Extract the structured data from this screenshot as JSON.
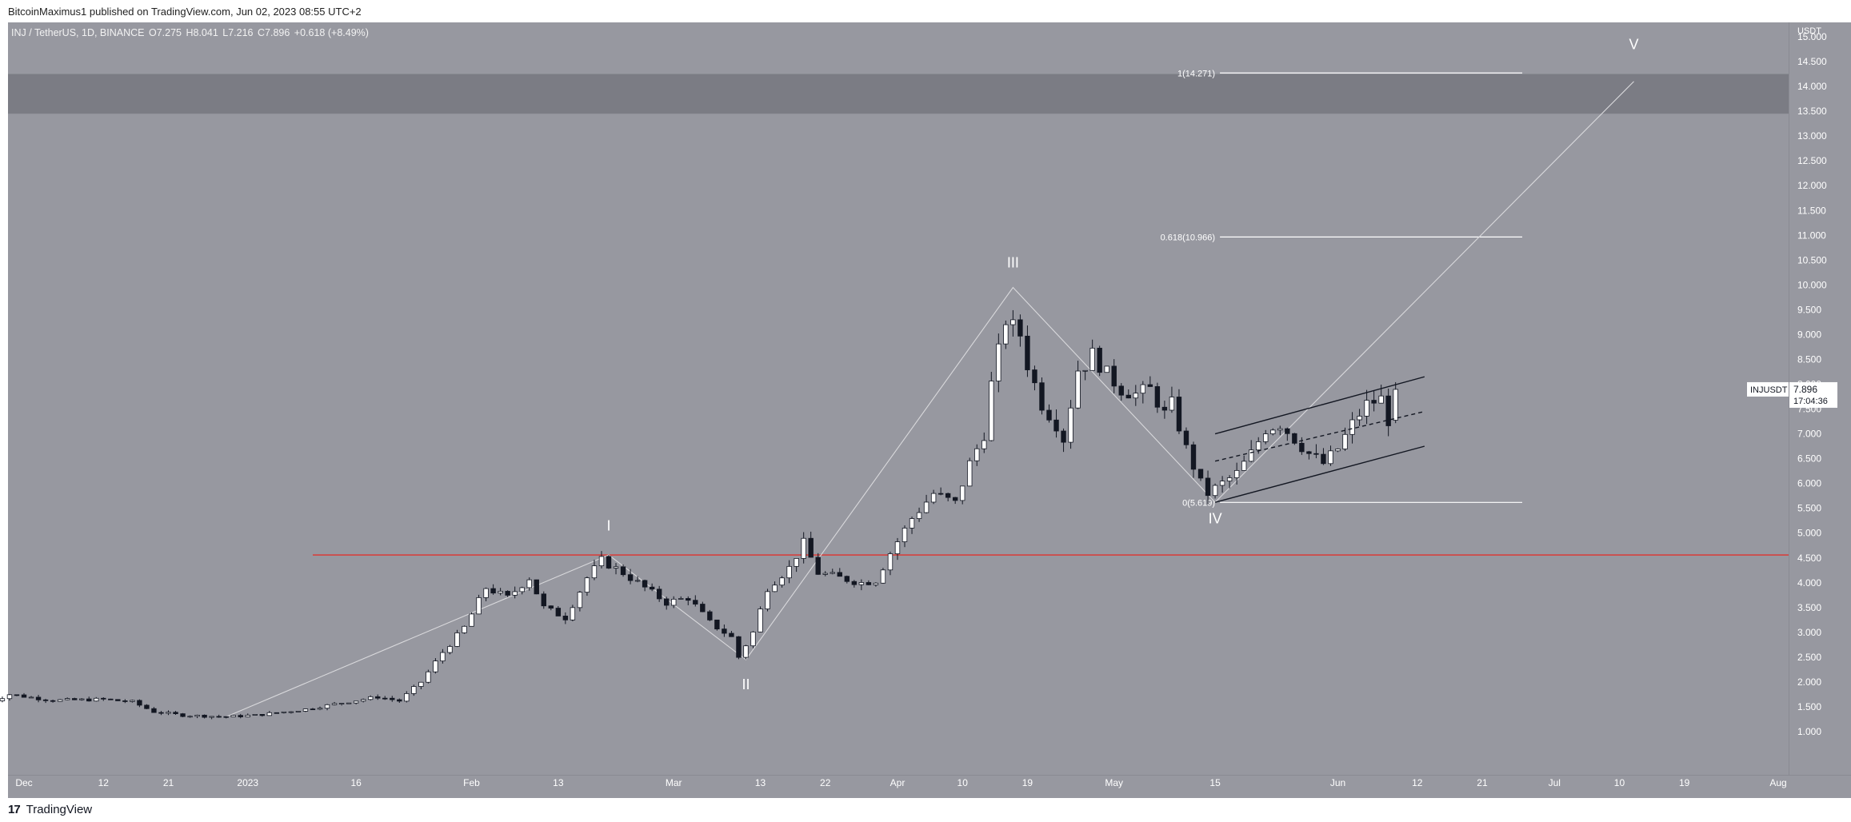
{
  "header": {
    "publisher_text": "BitcoinMaximus1 published on TradingView.com, Jun 02, 2023 08:55 UTC+2"
  },
  "symbol_info": {
    "title": "INJ / TetherUS, 1D, BINANCE",
    "open": "O7.275",
    "high": "H8.041",
    "low": "L7.216",
    "close": "C7.896",
    "change": "+0.618 (+8.49%)"
  },
  "footer": {
    "logo_mark": "17",
    "logo_text": "TradingView"
  },
  "chart_data": {
    "type": "candlestick",
    "symbol": "INJUSDT",
    "exchange": "BINANCE",
    "interval": "1D",
    "y_axis": {
      "unit": "USDT",
      "range": [
        0.7,
        15.3
      ],
      "ticks": [
        1.0,
        1.5,
        2.0,
        2.5,
        3.0,
        3.5,
        4.0,
        4.5,
        5.0,
        5.5,
        6.0,
        6.5,
        7.0,
        7.5,
        8.0,
        8.5,
        9.0,
        9.5,
        10.0,
        10.5,
        11.0,
        11.5,
        12.0,
        12.5,
        13.0,
        13.5,
        14.0,
        14.5,
        15.0
      ],
      "tick_labels": [
        "1.000",
        "1.500",
        "2.000",
        "2.500",
        "3.000",
        "3.500",
        "4.000",
        "4.500",
        "5.000",
        "5.500",
        "6.000",
        "6.500",
        "7.000",
        "7.500",
        "8.000",
        "8.500",
        "9.000",
        "9.500",
        "10.000",
        "10.500",
        "11.000",
        "11.500",
        "12.000",
        "12.500",
        "13.000",
        "13.500",
        "14.000",
        "14.500",
        "15.000"
      ]
    },
    "x_axis": {
      "start_date": "2022-11-26",
      "end_date": "2023-08-09",
      "tick_labels": [
        {
          "date": "2022-12-01",
          "label": "Dec"
        },
        {
          "date": "2022-12-12",
          "label": "12"
        },
        {
          "date": "2022-12-21",
          "label": "21"
        },
        {
          "date": "2023-01-01",
          "label": "2023"
        },
        {
          "date": "2023-01-16",
          "label": "16"
        },
        {
          "date": "2023-02-01",
          "label": "Feb"
        },
        {
          "date": "2023-02-13",
          "label": "13"
        },
        {
          "date": "2023-03-01",
          "label": "Mar"
        },
        {
          "date": "2023-03-13",
          "label": "13"
        },
        {
          "date": "2023-03-22",
          "label": "22"
        },
        {
          "date": "2023-04-01",
          "label": "Apr"
        },
        {
          "date": "2023-04-10",
          "label": "10"
        },
        {
          "date": "2023-04-19",
          "label": "19"
        },
        {
          "date": "2023-05-01",
          "label": "May"
        },
        {
          "date": "2023-05-15",
          "label": "15"
        },
        {
          "date": "2023-06-01",
          "label": "Jun"
        },
        {
          "date": "2023-06-12",
          "label": "12"
        },
        {
          "date": "2023-06-21",
          "label": "21"
        },
        {
          "date": "2023-07-01",
          "label": "Jul"
        },
        {
          "date": "2023-07-10",
          "label": "10"
        },
        {
          "date": "2023-07-19",
          "label": "19"
        },
        {
          "date": "2023-08-01",
          "label": "Aug"
        }
      ]
    },
    "price_path": [
      [
        "2022-11-26",
        1.58
      ],
      [
        "2022-11-29",
        1.75
      ],
      [
        "2022-12-05",
        1.63
      ],
      [
        "2022-12-12",
        1.65
      ],
      [
        "2022-12-16",
        1.6
      ],
      [
        "2022-12-19",
        1.4
      ],
      [
        "2022-12-23",
        1.33
      ],
      [
        "2022-12-29",
        1.3
      ],
      [
        "2023-01-02",
        1.33
      ],
      [
        "2023-01-09",
        1.45
      ],
      [
        "2023-01-14",
        1.58
      ],
      [
        "2023-01-19",
        1.7
      ],
      [
        "2023-01-22",
        1.62
      ],
      [
        "2023-01-25",
        2.0
      ],
      [
        "2023-01-28",
        2.6
      ],
      [
        "2023-01-31",
        3.1
      ],
      [
        "2023-02-03",
        3.9
      ],
      [
        "2023-02-06",
        3.7
      ],
      [
        "2023-02-09",
        4.1
      ],
      [
        "2023-02-11",
        3.5
      ],
      [
        "2023-02-14",
        3.3
      ],
      [
        "2023-02-17",
        4.1
      ],
      [
        "2023-02-19",
        4.45
      ],
      [
        "2023-02-22",
        4.2
      ],
      [
        "2023-02-25",
        3.9
      ],
      [
        "2023-02-28",
        3.6
      ],
      [
        "2023-03-03",
        3.7
      ],
      [
        "2023-03-06",
        3.2
      ],
      [
        "2023-03-09",
        2.9
      ],
      [
        "2023-03-10",
        2.5
      ],
      [
        "2023-03-12",
        3.0
      ],
      [
        "2023-03-14",
        3.9
      ],
      [
        "2023-03-17",
        4.3
      ],
      [
        "2023-03-19",
        4.8
      ],
      [
        "2023-03-21",
        4.2
      ],
      [
        "2023-03-24",
        4.1
      ],
      [
        "2023-03-27",
        4.0
      ],
      [
        "2023-03-29",
        4.05
      ],
      [
        "2023-03-31",
        4.6
      ],
      [
        "2023-04-03",
        5.3
      ],
      [
        "2023-04-06",
        5.8
      ],
      [
        "2023-04-09",
        5.6
      ],
      [
        "2023-04-11",
        6.4
      ],
      [
        "2023-04-13",
        7.0
      ],
      [
        "2023-04-14",
        8.0
      ],
      [
        "2023-04-16",
        9.3
      ],
      [
        "2023-04-18",
        9.0
      ],
      [
        "2023-04-19",
        8.4
      ],
      [
        "2023-04-21",
        7.6
      ],
      [
        "2023-04-23",
        7.2
      ],
      [
        "2023-04-24",
        6.9
      ],
      [
        "2023-04-26",
        8.3
      ],
      [
        "2023-04-27",
        8.4
      ],
      [
        "2023-04-28",
        8.6
      ],
      [
        "2023-04-30",
        8.2
      ],
      [
        "2023-05-02",
        7.9
      ],
      [
        "2023-05-04",
        7.8
      ],
      [
        "2023-05-06",
        7.9
      ],
      [
        "2023-05-08",
        7.4
      ],
      [
        "2023-05-09",
        7.6
      ],
      [
        "2023-05-11",
        6.7
      ],
      [
        "2023-05-13",
        6.0
      ],
      [
        "2023-05-14",
        5.8
      ],
      [
        "2023-05-16",
        6.0
      ],
      [
        "2023-05-18",
        6.2
      ],
      [
        "2023-05-20",
        6.6
      ],
      [
        "2023-05-22",
        7.1
      ],
      [
        "2023-05-24",
        7.2
      ],
      [
        "2023-05-26",
        6.9
      ],
      [
        "2023-05-28",
        6.6
      ],
      [
        "2023-05-30",
        6.4
      ],
      [
        "2023-06-01",
        6.7
      ],
      [
        "2023-06-03",
        7.2
      ],
      [
        "2023-06-05",
        7.6
      ],
      [
        "2023-06-07",
        7.7
      ],
      [
        "2023-06-08",
        7.28
      ],
      [
        "2023-06-09",
        7.896
      ]
    ],
    "last_bar": {
      "date": "2023-06-09",
      "open": 7.275,
      "high": 8.041,
      "low": 7.216,
      "close": 7.896
    },
    "price_label": {
      "symbol": "INJUSDT",
      "price": "7.896",
      "countdown": "17:04:36"
    },
    "horizontal_line": {
      "value": 4.56,
      "color": "#e0322c"
    },
    "resistance_zone": [
      13.45,
      14.25
    ],
    "fib_levels": [
      {
        "label": "1(14.271)",
        "value": 14.271
      },
      {
        "label": "0.618(10.966)",
        "value": 10.966
      },
      {
        "label": "0(5.619)",
        "value": 5.619
      }
    ],
    "wave_path": [
      [
        "2022-12-29",
        1.3
      ],
      [
        "2023-02-20",
        4.56
      ],
      [
        "2023-03-11",
        2.45
      ],
      [
        "2023-04-17",
        9.95
      ],
      [
        "2023-05-15",
        5.62
      ],
      [
        "2023-07-12",
        14.1
      ]
    ],
    "wave_labels": [
      {
        "text": "I",
        "date": "2023-02-20",
        "value": 5.05
      },
      {
        "text": "II",
        "date": "2023-03-11",
        "value": 1.85
      },
      {
        "text": "III",
        "date": "2023-04-17",
        "value": 10.35
      },
      {
        "text": "IV",
        "date": "2023-05-15",
        "value": 5.2
      },
      {
        "text": "V",
        "date": "2023-07-12",
        "value": 14.75
      }
    ],
    "channel": {
      "upper": [
        [
          "2023-05-15",
          7.0
        ],
        [
          "2023-06-13",
          8.15
        ]
      ],
      "middle": [
        [
          "2023-05-15",
          6.45
        ],
        [
          "2023-06-13",
          7.45
        ]
      ],
      "lower": [
        [
          "2023-05-15",
          5.62
        ],
        [
          "2023-06-13",
          6.75
        ]
      ]
    },
    "colors": {
      "background": "#9798a0",
      "axis_background": "#9798a0",
      "text": "#ffffff",
      "candle_up": "#ffffff",
      "candle_down": "#131722",
      "zone": "#7b7c84"
    },
    "grid": false,
    "legend": "none"
  }
}
